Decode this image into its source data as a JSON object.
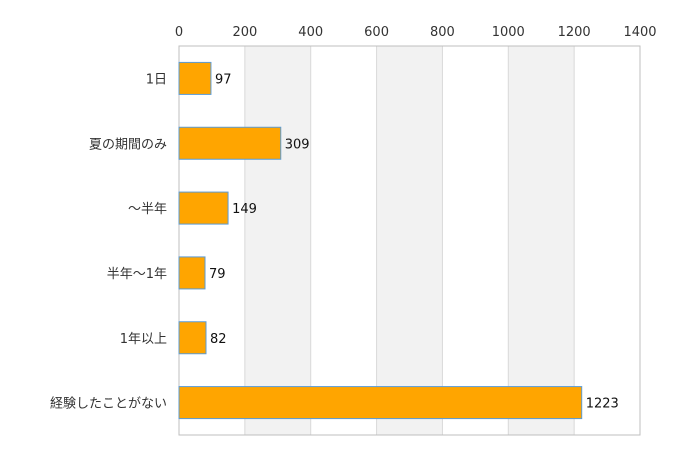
{
  "chart_data": {
    "type": "bar",
    "orientation": "horizontal",
    "title": "",
    "xlabel": "",
    "ylabel": "",
    "categories": [
      "1日",
      "夏の期間のみ",
      "〜半年",
      "半年〜1年",
      "1年以上",
      "経験したことがない"
    ],
    "values": [
      97,
      309,
      149,
      79,
      82,
      1223
    ],
    "xlim": [
      0,
      1400
    ],
    "xticks": [
      0,
      200,
      400,
      600,
      800,
      1000,
      1200,
      1400
    ],
    "xtick_labels": [
      "0",
      "200",
      "400",
      "600",
      "800",
      "1000",
      "1200",
      "1400"
    ],
    "axis_position": "top",
    "grid": true,
    "alternating_bands": true,
    "legend": "none",
    "colors": {
      "bar_fill": "#FFA500",
      "bar_stroke": "#5B9BD5",
      "band": "#F2F2F2",
      "grid": "#D9D9D9",
      "border": "#BFBFBF"
    }
  }
}
